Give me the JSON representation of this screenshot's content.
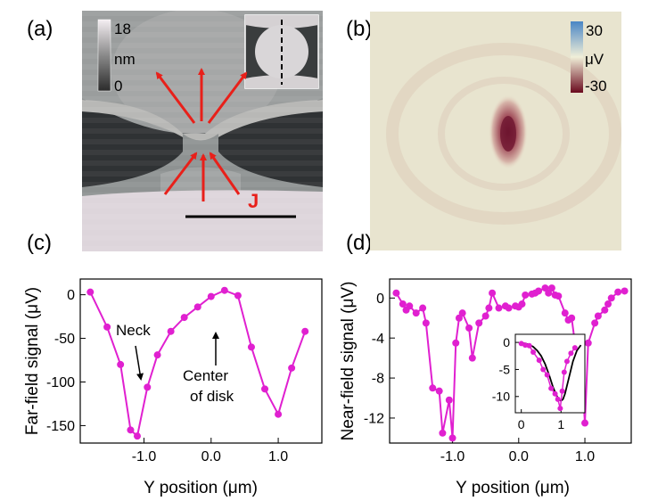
{
  "panel_labels": {
    "a": "(a)",
    "b": "(b)",
    "c": "(c)",
    "d": "(d)"
  },
  "panel_a": {
    "scale_max": "18",
    "scale_unit": "nm",
    "scale_min": "0",
    "current_label": "J",
    "arrow_color": "#e8201a"
  },
  "panel_b": {
    "scale_max": "30",
    "scale_unit": "μV",
    "scale_min": "-30"
  },
  "chart_data": [
    {
      "type": "line",
      "panel": "(c)",
      "xlabel": "Y position (μm)",
      "ylabel": "Far-field signal (μV)",
      "xlim": [
        -1.95,
        1.65
      ],
      "ylim": [
        -170,
        18
      ],
      "xticks": [
        "-1.0",
        "0.0",
        "1.0"
      ],
      "xtick_values": [
        -1.0,
        0.0,
        1.0
      ],
      "yticks": [
        "0",
        "-50",
        "-100",
        "-150"
      ],
      "ytick_values": [
        0,
        -50,
        -100,
        -150
      ],
      "color": "#e020d0",
      "annotations": {
        "neck": "Neck",
        "center_line1": "Center",
        "center_line2": "of disk"
      },
      "series": [
        {
          "name": "far-field",
          "x": [
            -1.8,
            -1.55,
            -1.35,
            -1.2,
            -1.1,
            -0.95,
            -0.8,
            -0.6,
            -0.4,
            -0.2,
            0.0,
            0.2,
            0.4,
            0.6,
            0.8,
            1.0,
            1.2,
            1.4
          ],
          "y": [
            3,
            -37,
            -80,
            -155,
            -162,
            -106,
            -69,
            -42,
            -26,
            -14,
            -2,
            5,
            -1,
            -60,
            -108,
            -137,
            -84,
            -42
          ]
        }
      ]
    },
    {
      "type": "line",
      "panel": "(d)",
      "xlabel": "Y position (μm)",
      "ylabel": "Near-field signal (μV)",
      "xlim": [
        -1.95,
        1.7
      ],
      "ylim": [
        -14.5,
        1.9
      ],
      "xticks": [
        "-1.0",
        "0.0",
        "1.0"
      ],
      "xtick_values": [
        -1.0,
        0.0,
        1.0
      ],
      "yticks": [
        "0",
        "-4",
        "-8",
        "-12"
      ],
      "ytick_values": [
        0,
        -4,
        -8,
        -12
      ],
      "color": "#e020d0",
      "series": [
        {
          "name": "near-field",
          "x": [
            -1.85,
            -1.75,
            -1.7,
            -1.65,
            -1.55,
            -1.45,
            -1.4,
            -1.3,
            -1.2,
            -1.15,
            -1.05,
            -1.0,
            -0.95,
            -0.9,
            -0.85,
            -0.75,
            -0.7,
            -0.6,
            -0.5,
            -0.45,
            -0.4,
            -0.3,
            -0.2,
            -0.15,
            -0.05,
            0.0,
            0.05,
            0.1,
            0.2,
            0.25,
            0.3,
            0.4,
            0.45,
            0.5,
            0.55,
            0.6,
            0.7,
            0.75,
            0.8,
            0.85,
            0.95,
            1.0,
            1.05,
            1.15,
            1.2,
            1.3,
            1.35,
            1.4,
            1.5,
            1.6
          ],
          "y": [
            0.5,
            -0.6,
            -1.2,
            -0.8,
            -1.5,
            -1.0,
            -2.5,
            -9.0,
            -9.3,
            -13.5,
            -10.2,
            -14.0,
            -4.5,
            -2.0,
            -1.5,
            -3.0,
            -6.0,
            -2.5,
            -1.8,
            -1.0,
            0.5,
            -1.0,
            -0.8,
            -1.0,
            -0.8,
            -0.9,
            -0.6,
            0.3,
            0.4,
            0.5,
            0.7,
            1.0,
            0.5,
            1.0,
            0.3,
            0.2,
            -1.5,
            -2.2,
            -2.0,
            -4.5,
            -7.0,
            -12.5,
            -4.5,
            -2.5,
            -1.8,
            -1.2,
            -0.6,
            0.0,
            0.6,
            0.7
          ]
        }
      ],
      "inset": {
        "xlim": [
          -0.15,
          1.6
        ],
        "ylim": [
          -13,
          1.5
        ],
        "xticks": [
          "0",
          "1"
        ],
        "xtick_values": [
          0,
          1
        ],
        "yticks": [
          "0",
          "-5",
          "-10"
        ],
        "ytick_values": [
          0,
          -5,
          -10
        ],
        "points": {
          "x": [
            0.0,
            0.1,
            0.2,
            0.3,
            0.45,
            0.55,
            0.65,
            0.75,
            0.85,
            0.92,
            0.98,
            1.03,
            1.08,
            1.15,
            1.25,
            1.35
          ],
          "y": [
            -0.2,
            -0.5,
            -0.6,
            -1.8,
            -3.3,
            -5.0,
            -6.0,
            -8.5,
            -9.5,
            -10.5,
            -12.2,
            -9.0,
            -5.5,
            -3.5,
            -2.0,
            -1.0
          ]
        },
        "fit": {
          "x": [
            0.0,
            0.1,
            0.2,
            0.3,
            0.4,
            0.5,
            0.6,
            0.7,
            0.8,
            0.9,
            0.95,
            1.0,
            1.05,
            1.1,
            1.2,
            1.3,
            1.4,
            1.5
          ],
          "y": [
            -0.1,
            -0.2,
            -0.4,
            -0.8,
            -1.5,
            -2.5,
            -4.0,
            -6.0,
            -8.3,
            -10.0,
            -10.6,
            -10.8,
            -10.5,
            -9.5,
            -6.5,
            -3.5,
            -1.5,
            -0.5
          ]
        }
      }
    }
  ]
}
